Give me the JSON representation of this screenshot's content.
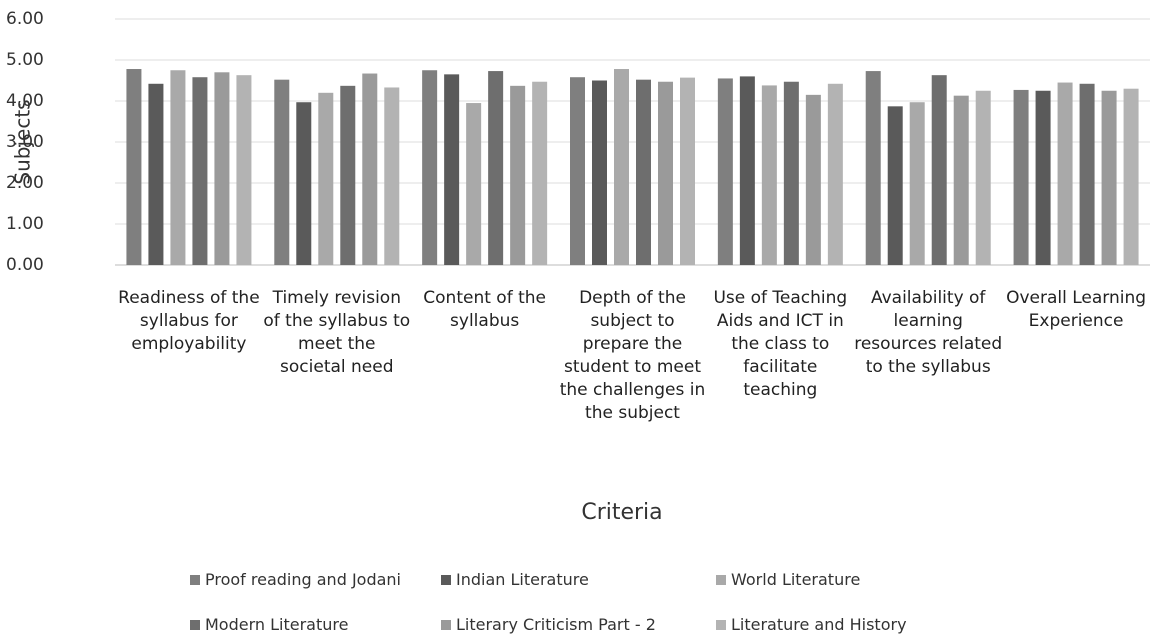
{
  "chart_data": {
    "type": "bar",
    "y_label": "Subjects",
    "x_label": "Criteria",
    "categories": [
      "Readiness of the syllabus for employability",
      "Timely revision of the syllabus to meet the societal need",
      "Content of the syllabus",
      "Depth of the subject to prepare the student to meet the challenges in the subject",
      "Use of Teaching Aids and ICT in the class to facilitate teaching",
      "Availability of learning resources related to the syllabus",
      "Overall Learning Experience"
    ],
    "series": [
      {
        "name": "Proof reading and Jodani",
        "color": "#7f7f7f",
        "values": [
          4.78,
          4.52,
          4.75,
          4.58,
          4.55,
          4.73,
          4.27
        ]
      },
      {
        "name": "Indian Literature",
        "color": "#5a5a5a",
        "values": [
          4.42,
          3.97,
          4.65,
          4.5,
          4.6,
          3.87,
          4.25
        ]
      },
      {
        "name": "World Literature",
        "color": "#a9a9a9",
        "values": [
          4.75,
          4.2,
          3.95,
          4.78,
          4.38,
          3.97,
          4.45
        ]
      },
      {
        "name": "Modern Literature",
        "color": "#6e6e6e",
        "values": [
          4.58,
          4.37,
          4.73,
          4.52,
          4.47,
          4.63,
          4.42
        ]
      },
      {
        "name": "Literary Criticism Part - 2",
        "color": "#9a9a9a",
        "values": [
          4.7,
          4.67,
          4.37,
          4.47,
          4.15,
          4.13,
          4.25
        ]
      },
      {
        "name": "Literature and History",
        "color": "#b3b3b3",
        "values": [
          4.63,
          4.33,
          4.47,
          4.57,
          4.42,
          4.25,
          4.3
        ]
      }
    ],
    "ylim": [
      0,
      6
    ],
    "yticks": [
      {
        "value": 0,
        "label": "0.00"
      },
      {
        "value": 1,
        "label": "1.00"
      },
      {
        "value": 2,
        "label": "2.00"
      },
      {
        "value": 3,
        "label": "3.00"
      },
      {
        "value": 4,
        "label": "4.00"
      },
      {
        "value": 5,
        "label": "5.00"
      },
      {
        "value": 6,
        "label": "6.00"
      }
    ],
    "grid": true
  }
}
